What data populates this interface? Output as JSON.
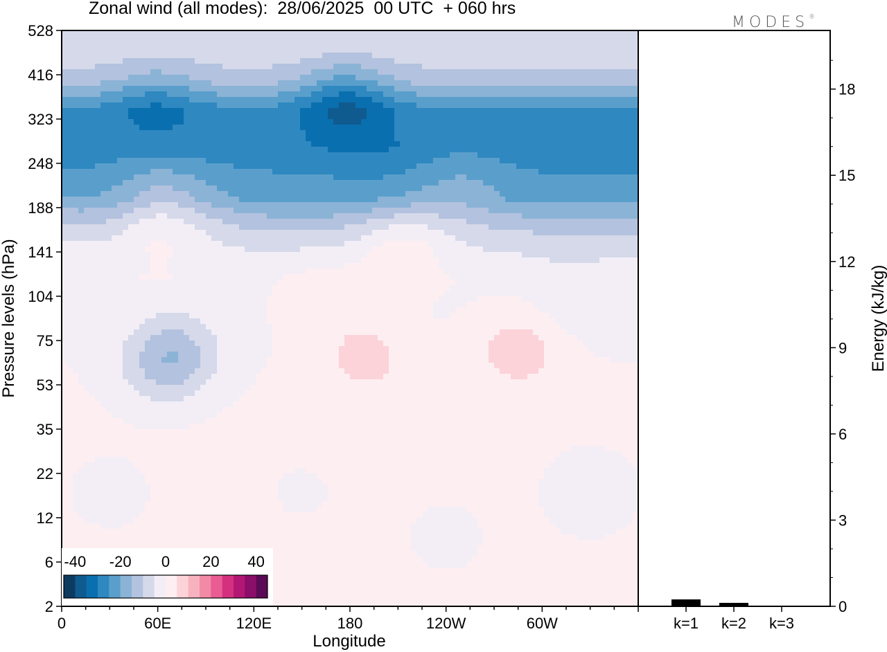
{
  "title": "Zonal wind (all modes):  28/06/2025  00 UTC  + 060 hrs",
  "logo": "MODES",
  "logo_mark": "®",
  "colors": {
    "palette": [
      "#0d3a5f",
      "#0f5a8e",
      "#0a6fae",
      "#2f88c0",
      "#5a9fcc",
      "#8bb3d6",
      "#b3c2de",
      "#d5d9ea",
      "#f3eef6",
      "#fdeef1",
      "#fbd3d9",
      "#f7b2c0",
      "#f28aa6",
      "#ea5c94",
      "#d4307f",
      "#b21773",
      "#8a0e6a",
      "#5b0a56"
    ]
  },
  "chart_data": [
    {
      "type": "heatmap",
      "title": "Zonal wind (all modes):  28/06/2025  00 UTC  + 060 hrs",
      "xlabel": "Longitude",
      "ylabel": "Pressure levels (hPa)",
      "x_ticks": [
        "0",
        "60E",
        "120E",
        "180",
        "120W",
        "60W"
      ],
      "y_ticks": [
        "2",
        "6",
        "12",
        "22",
        "35",
        "53",
        "75",
        "104",
        "141",
        "188",
        "248",
        "323",
        "416",
        "528"
      ],
      "colorbar": {
        "ticks": [
          "-40",
          "-20",
          "0",
          "20",
          "40"
        ],
        "range": [
          -45,
          45
        ],
        "step": 5
      },
      "fields": [
        {
          "lon": 0,
          "lev": 8.5,
          "value": -5
        },
        {
          "lon": 220,
          "lev": 8.5,
          "value": -4
        },
        {
          "lon": 90,
          "lev": 8.9,
          "value": -12
        },
        {
          "lon": 230,
          "lev": 8.9,
          "value": -18
        },
        {
          "lon": 170,
          "lev": 11.3,
          "value": -30
        },
        {
          "lon": 60,
          "lev": 11.5,
          "value": -32
        },
        {
          "lon": 180,
          "lev": 11.5,
          "value": -36
        },
        {
          "lon": 300,
          "lev": 11,
          "value": -28
        },
        {
          "lon": 60,
          "lev": 10.2,
          "value": -28
        },
        {
          "lon": 200,
          "lev": 10.2,
          "value": -30
        },
        {
          "lon": 60,
          "lev": 9.4,
          "value": -12
        },
        {
          "lon": 250,
          "lev": 9.4,
          "value": -14
        },
        {
          "lon": 60,
          "lev": 8.5,
          "value": 1
        },
        {
          "lon": 210,
          "lev": 8.1,
          "value": 4
        },
        {
          "lon": 70,
          "lev": 5.7,
          "value": -22
        },
        {
          "lon": 60,
          "lev": 5.2,
          "value": -8
        },
        {
          "lon": 320,
          "lev": 7,
          "value": -7
        },
        {
          "lon": 190,
          "lev": 5.6,
          "value": 12
        },
        {
          "lon": 285,
          "lev": 5.8,
          "value": 14
        },
        {
          "lon": 165,
          "lev": 7,
          "value": 6
        },
        {
          "lon": 330,
          "lev": 2.5,
          "value": -8
        },
        {
          "lon": 240,
          "lev": 1.5,
          "value": -4
        },
        {
          "lon": 30,
          "lev": 2.5,
          "value": -4
        },
        {
          "lon": 150,
          "lev": 2.5,
          "value": -2
        }
      ]
    },
    {
      "type": "bar",
      "ylabel": "Energy (kJ/kg)",
      "categories": [
        "k=1",
        "k=2",
        "k=3"
      ],
      "values": [
        0.06,
        0.03,
        0.0
      ],
      "ylim": [
        0,
        20
      ],
      "y_ticks": [
        "0",
        "3",
        "6",
        "9",
        "12",
        "15",
        "18"
      ]
    }
  ]
}
